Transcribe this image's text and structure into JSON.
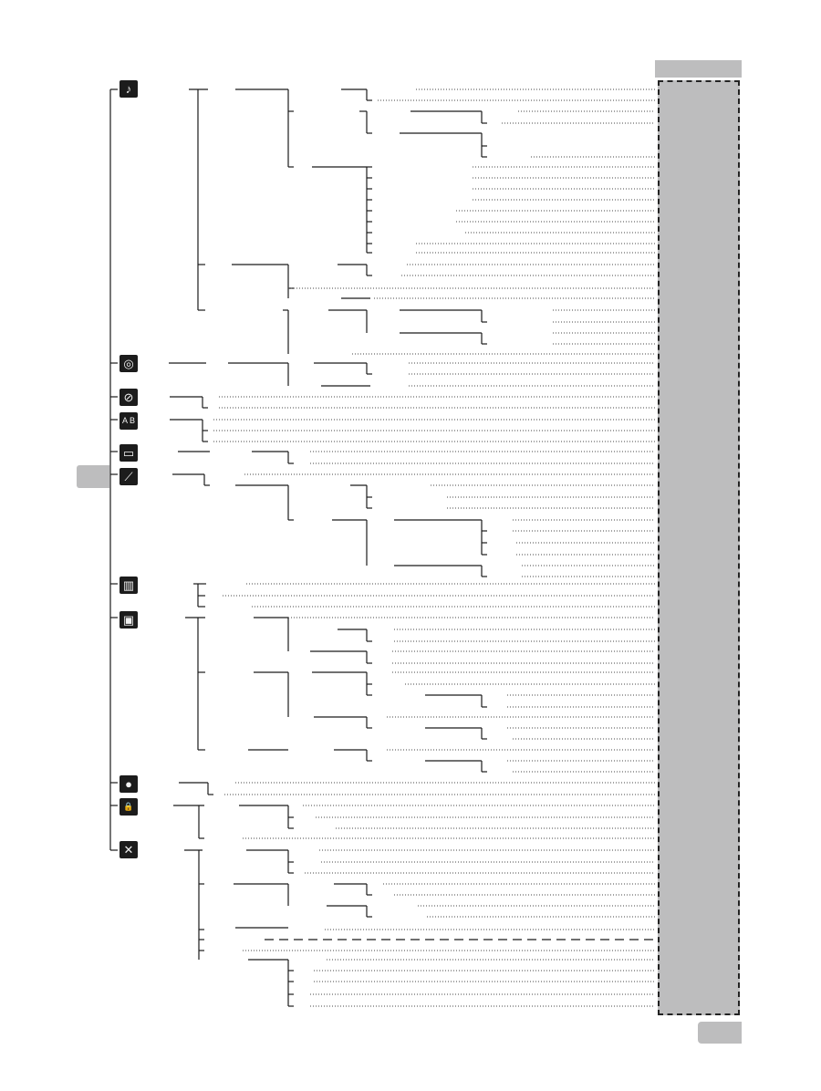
{
  "theme": {
    "line_color": "#1a1a1a",
    "dot_color": "#444444",
    "panel_color": "#bdbdbe",
    "icon_color": "#1c1c1c"
  },
  "menu_icons": [
    {
      "name": "audio-settings-icon",
      "glyph": "♪"
    },
    {
      "name": "disc-icon",
      "glyph": "◎"
    },
    {
      "name": "tape-icon",
      "glyph": "⊘"
    },
    {
      "name": "abc-grid-icon",
      "glyph": "A B"
    },
    {
      "name": "monitor-icon",
      "glyph": "▭"
    },
    {
      "name": "graph-icon",
      "glyph": "⟋"
    },
    {
      "name": "bar-chart-icon",
      "glyph": "▥"
    },
    {
      "name": "box-icon",
      "glyph": "▣"
    },
    {
      "name": "record-icon",
      "glyph": "●"
    },
    {
      "name": "lock-icon",
      "glyph": "🔒"
    },
    {
      "name": "tools-icon",
      "glyph": "✕"
    }
  ],
  "panel": {
    "label": ""
  },
  "page_number": ""
}
